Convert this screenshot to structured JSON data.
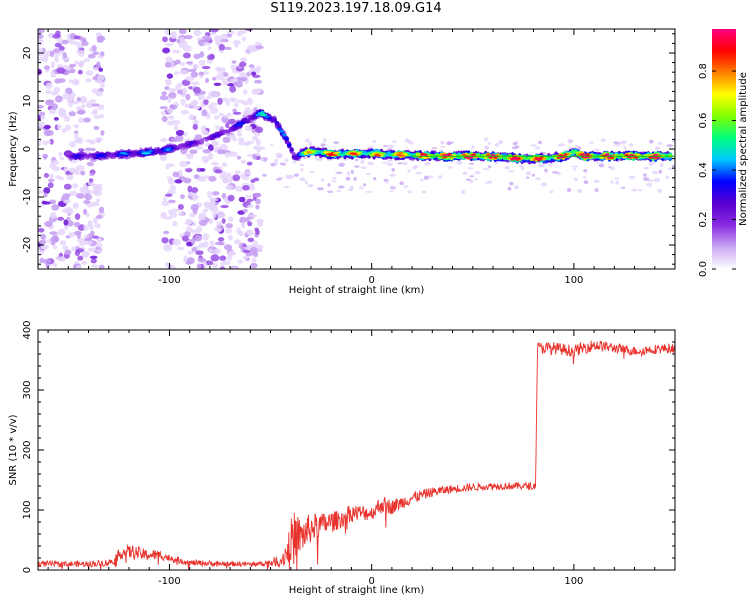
{
  "title": "S119.2023.197.18.09.G14",
  "chart_data": [
    {
      "type": "heatmap",
      "xlabel": "Height of straight line (km)",
      "ylabel": "Frequency (Hz)",
      "xlim": [
        -165,
        150
      ],
      "ylim": [
        -25,
        25
      ],
      "xticks": [
        -100,
        0,
        100
      ],
      "yticks": [
        -20,
        -10,
        0,
        10,
        20
      ],
      "colorbar": {
        "label": "Normalized spectral amplitude",
        "range": [
          0.0,
          0.97
        ],
        "ticks": [
          0.0,
          0.2,
          0.4,
          0.6,
          0.8
        ],
        "tick_labels": [
          "0.0",
          "0.2",
          "0.4",
          "0.6",
          "0.8"
        ],
        "colormap": [
          "#ffffff",
          "#c9a8f5",
          "#8a2be2",
          "#5a00d0",
          "#0000ff",
          "#00c8ff",
          "#00ff80",
          "#80ff00",
          "#ffff00",
          "#ff8000",
          "#ff0000",
          "#ff0080"
        ]
      },
      "ridge": {
        "x": [
          -140,
          -120,
          -105,
          -95,
          -85,
          -70,
          -55,
          -48,
          -42,
          -38,
          -35,
          -30,
          -20,
          -10,
          0,
          20,
          40,
          60,
          75,
          85,
          95,
          100,
          105,
          120,
          148
        ],
        "y": [
          -1.5,
          -1,
          -0.5,
          0.5,
          1.5,
          4,
          7.5,
          6,
          2,
          -2,
          -1,
          -0.5,
          -1,
          -1,
          -1,
          -1.3,
          -1.5,
          -1.5,
          -2,
          -2,
          -1.5,
          -0.5,
          -1.5,
          -1.5,
          -1.5
        ],
        "amplitude": [
          0.3,
          0.4,
          0.45,
          0.3,
          0.25,
          0.3,
          0.45,
          0.5,
          0.35,
          0.4,
          0.6,
          0.75,
          0.85,
          0.8,
          0.75,
          0.8,
          0.95,
          0.95,
          0.9,
          0.85,
          0.9,
          0.9,
          0.95,
          0.95,
          0.95
        ]
      },
      "noise_regions": [
        {
          "x_range": [
            -165,
            -133
          ],
          "amplitude": 0.15
        },
        {
          "x_range": [
            -103,
            -55
          ],
          "amplitude": 0.15
        }
      ]
    },
    {
      "type": "line",
      "xlabel": "Height of straight line (km)",
      "ylabel": "SNR (10 * v/v)",
      "xlim": [
        -165,
        150
      ],
      "ylim": [
        0,
        400
      ],
      "xticks": [
        -100,
        0,
        100
      ],
      "yticks": [
        0,
        100,
        200,
        300,
        400
      ],
      "color": "#e8322c",
      "series": [
        {
          "x": [
            -165,
            -140,
            -130,
            -123,
            -118,
            -112,
            -105,
            -100,
            -90,
            -70,
            -55,
            -45,
            -42,
            -40,
            -38,
            -35,
            -30,
            -25,
            -20,
            -15,
            -10,
            0,
            5,
            10,
            20,
            30,
            40,
            50,
            60,
            70,
            78,
            81,
            82,
            90,
            100,
            110,
            120,
            130,
            140,
            150
          ],
          "values": [
            10,
            10,
            12,
            30,
            30,
            25,
            25,
            20,
            12,
            10,
            10,
            15,
            30,
            50,
            60,
            55,
            70,
            75,
            80,
            85,
            95,
            95,
            110,
            105,
            120,
            130,
            135,
            138,
            140,
            140,
            140,
            140,
            370,
            370,
            365,
            375,
            370,
            365,
            368,
            370
          ],
          "noise": [
            5,
            5,
            6,
            10,
            12,
            10,
            8,
            6,
            5,
            4,
            4,
            10,
            25,
            35,
            40,
            30,
            25,
            20,
            18,
            15,
            15,
            12,
            15,
            12,
            10,
            8,
            7,
            6,
            6,
            6,
            6,
            6,
            10,
            10,
            10,
            10,
            8,
            8,
            8,
            8
          ]
        }
      ]
    }
  ]
}
